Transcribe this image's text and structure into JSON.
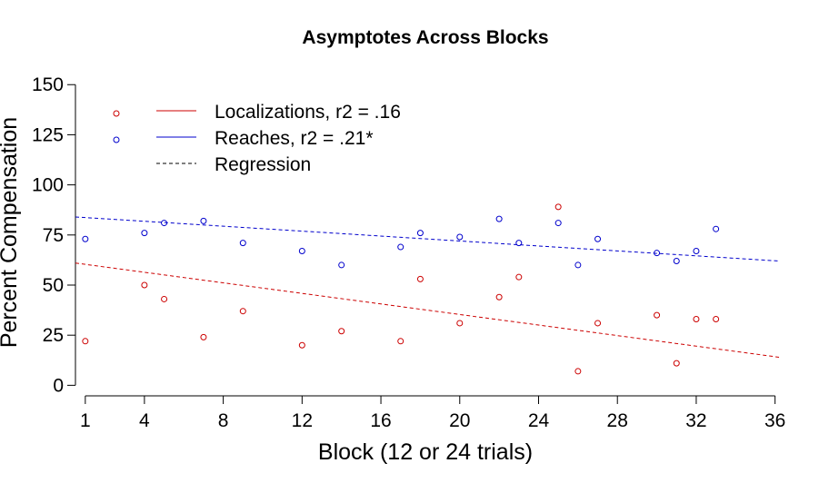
{
  "chart_data": {
    "type": "scatter",
    "title": "Asymptotes Across Blocks",
    "xlabel": "Block (12 or 24 trials)",
    "ylabel": "Percent Compensation",
    "xlim": [
      0.5,
      36.2
    ],
    "ylim": [
      -3,
      156
    ],
    "xticks": [
      1,
      4,
      8,
      12,
      16,
      20,
      24,
      28,
      32,
      36
    ],
    "yticks": [
      0,
      25,
      50,
      75,
      100,
      125,
      150
    ],
    "grid": false,
    "legend_position": "top-left",
    "series": [
      {
        "name": "Localizations, r2 = .16",
        "color": "#cc0000",
        "points": [
          {
            "x": 1,
            "y": 22
          },
          {
            "x": 4,
            "y": 50
          },
          {
            "x": 5,
            "y": 43
          },
          {
            "x": 7,
            "y": 24
          },
          {
            "x": 9,
            "y": 37
          },
          {
            "x": 12,
            "y": 20
          },
          {
            "x": 14,
            "y": 27
          },
          {
            "x": 17,
            "y": 22
          },
          {
            "x": 18,
            "y": 53
          },
          {
            "x": 20,
            "y": 31
          },
          {
            "x": 22,
            "y": 44
          },
          {
            "x": 23,
            "y": 54
          },
          {
            "x": 25,
            "y": 89
          },
          {
            "x": 26,
            "y": 7
          },
          {
            "x": 27,
            "y": 31
          },
          {
            "x": 30,
            "y": 35
          },
          {
            "x": 31,
            "y": 11
          },
          {
            "x": 32,
            "y": 33
          },
          {
            "x": 33,
            "y": 33
          }
        ],
        "regression": {
          "x": [
            0.5,
            36.2
          ],
          "y": [
            61,
            14
          ]
        }
      },
      {
        "name": "Reaches, r2 = .21*",
        "color": "#0000cc",
        "points": [
          {
            "x": 1,
            "y": 73
          },
          {
            "x": 4,
            "y": 76
          },
          {
            "x": 5,
            "y": 81
          },
          {
            "x": 7,
            "y": 82
          },
          {
            "x": 9,
            "y": 71
          },
          {
            "x": 12,
            "y": 67
          },
          {
            "x": 14,
            "y": 60
          },
          {
            "x": 17,
            "y": 69
          },
          {
            "x": 18,
            "y": 76
          },
          {
            "x": 20,
            "y": 74
          },
          {
            "x": 22,
            "y": 83
          },
          {
            "x": 23,
            "y": 71
          },
          {
            "x": 25,
            "y": 81
          },
          {
            "x": 26,
            "y": 60
          },
          {
            "x": 27,
            "y": 73
          },
          {
            "x": 30,
            "y": 66
          },
          {
            "x": 31,
            "y": 62
          },
          {
            "x": 32,
            "y": 67
          },
          {
            "x": 33,
            "y": 78
          }
        ],
        "regression": {
          "x": [
            0.5,
            36.2
          ],
          "y": [
            84,
            62
          ]
        }
      }
    ],
    "legend": [
      {
        "label": "Localizations, r2 = .16",
        "color": "#cc0000",
        "style": "solid"
      },
      {
        "label": "Reaches, r2 = .21*",
        "color": "#0000cc",
        "style": "solid"
      },
      {
        "label": "Regression",
        "color": "#000000",
        "style": "dashed"
      }
    ]
  }
}
